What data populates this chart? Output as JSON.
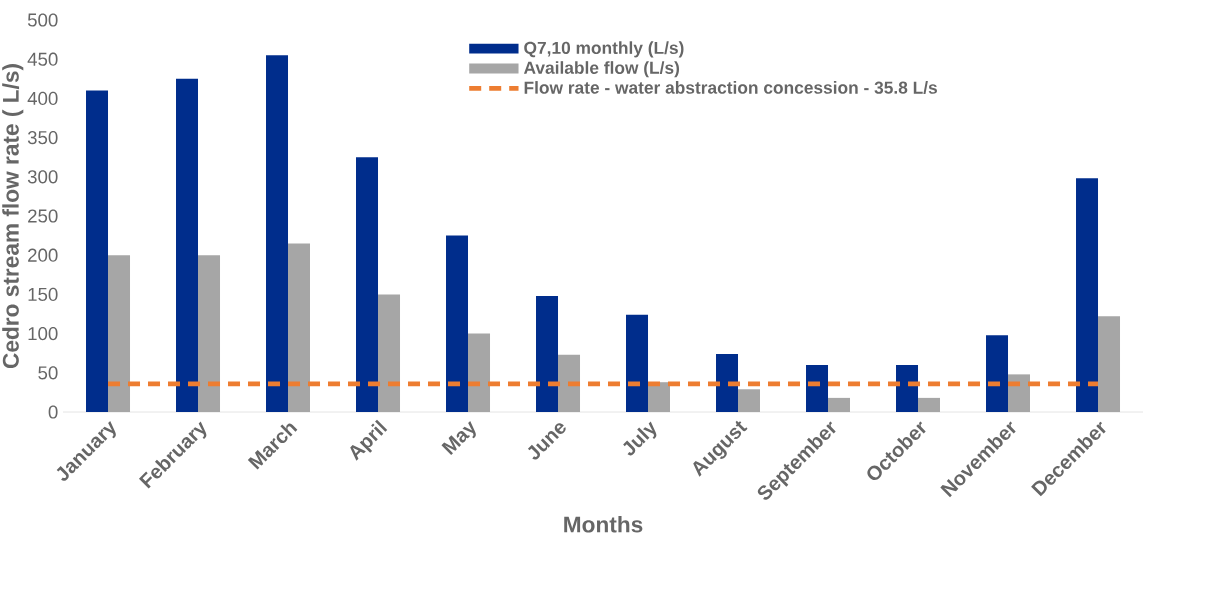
{
  "chart_data": {
    "type": "bar",
    "xlabel": "Months",
    "ylabel": "Cedro stream flow rate ( L/s)",
    "categories": [
      "January",
      "February",
      "March",
      "April",
      "May",
      "June",
      "July",
      "August",
      "September",
      "October",
      "November",
      "December"
    ],
    "series": [
      {
        "name": "Q7,10 monthly (L/s)",
        "color": "#002d8c",
        "values": [
          410,
          425,
          455,
          325,
          225,
          148,
          124,
          74,
          60,
          60,
          98,
          298
        ]
      },
      {
        "name": "Available flow (L/s)",
        "color": "#a6a6a6",
        "values": [
          200,
          200,
          215,
          150,
          100,
          73,
          38,
          29,
          18,
          18,
          48,
          122
        ]
      }
    ],
    "ylim": [
      0,
      500
    ],
    "yticks": [
      0,
      50,
      100,
      150,
      200,
      250,
      300,
      350,
      400,
      450,
      500
    ],
    "ref_lines": [
      {
        "axis": "y",
        "value": 35.8,
        "label": "Flow rate - water abstraction concession  - 35.8 L/s",
        "color": "#ed7d31",
        "line_style": "dashed"
      }
    ],
    "legend": "top right"
  }
}
